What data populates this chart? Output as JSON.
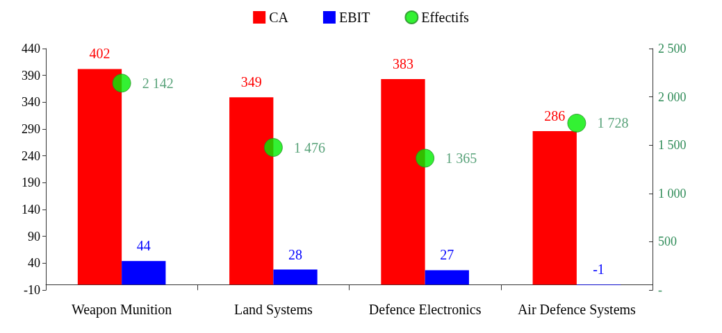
{
  "chart_data": {
    "type": "bar",
    "categories": [
      "Weapon Munition",
      "Land Systems",
      "Defence Electronics",
      "Air Defence Systems"
    ],
    "series": [
      {
        "name": "CA",
        "color": "#ff0000",
        "values": [
          402,
          349,
          383,
          286
        ]
      },
      {
        "name": "EBIT",
        "color": "#0000ff",
        "values": [
          44,
          28,
          27,
          -1
        ]
      },
      {
        "name": "Effectifs",
        "type": "scatter",
        "axis": "y2",
        "color": "#00ee00",
        "x": [
          "Weapon Munition",
          "Land Systems",
          "Defence Electronics",
          "Air Defence Systems"
        ],
        "values": [
          2142,
          1476,
          1365,
          1728
        ],
        "value_labels": [
          "2 142",
          "1 476",
          "1 365",
          "1 728"
        ]
      }
    ],
    "ylim": [
      -10,
      440
    ],
    "yticks": [
      -10,
      40,
      90,
      140,
      190,
      240,
      290,
      340,
      390,
      440
    ],
    "y2lim": [
      0,
      2500
    ],
    "y2ticks": [
      {
        "value": 0,
        "label": "-"
      },
      500,
      {
        "value": 1000,
        "label": "1 000"
      },
      {
        "value": 1500,
        "label": "1 500"
      },
      {
        "value": 2000,
        "label": "2 000"
      },
      {
        "value": 2500,
        "label": "2 500"
      }
    ],
    "data_labels": true,
    "legend": "top",
    "grid": false,
    "marker": "circle"
  }
}
